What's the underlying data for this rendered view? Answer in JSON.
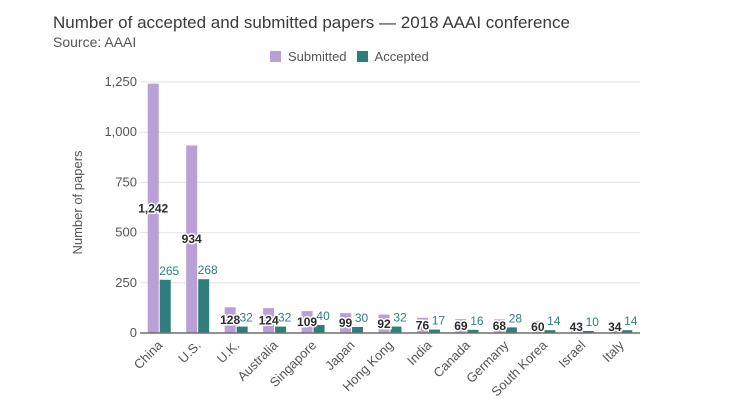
{
  "colors": {
    "submitted": "#b9a0d6",
    "accepted": "#2e7f7c",
    "grid": "#e2e2e2",
    "axis": "#6f6f6f",
    "accepted_label": "#2e7f7c",
    "submitted_label": "#2a2a2a"
  },
  "chart_data": {
    "type": "bar",
    "title": "Number of accepted and submitted papers — 2018 AAAI conference",
    "subtitle": "Source: AAAI",
    "xlabel": "",
    "ylabel": "Number of papers",
    "ylim": [
      0,
      1300
    ],
    "yticks": [
      0,
      250,
      500,
      750,
      1000,
      1250
    ],
    "ytick_labels": [
      "0",
      "250",
      "500",
      "750",
      "1,000",
      "1,250"
    ],
    "grid": true,
    "legend_position": "top-center",
    "categories": [
      "China",
      "U.S.",
      "U.K.",
      "Australia",
      "Singapore",
      "Japan",
      "Hong Kong",
      "India",
      "Canada",
      "Germany",
      "South Korea",
      "Israel",
      "Italy"
    ],
    "series": [
      {
        "name": "Submitted",
        "values": [
          1242,
          934,
          128,
          124,
          109,
          99,
          92,
          76,
          69,
          68,
          60,
          43,
          34
        ],
        "labels": [
          "1,242",
          "934",
          "128",
          "124",
          "109",
          "99",
          "92",
          "76",
          "69",
          "68",
          "60",
          "43",
          "34"
        ]
      },
      {
        "name": "Accepted",
        "values": [
          265,
          268,
          32,
          32,
          40,
          30,
          32,
          17,
          16,
          28,
          14,
          10,
          14
        ],
        "labels": [
          "265",
          "268",
          "32",
          "32",
          "40",
          "30",
          "32",
          "17",
          "16",
          "28",
          "14",
          "10",
          "14"
        ]
      }
    ]
  }
}
